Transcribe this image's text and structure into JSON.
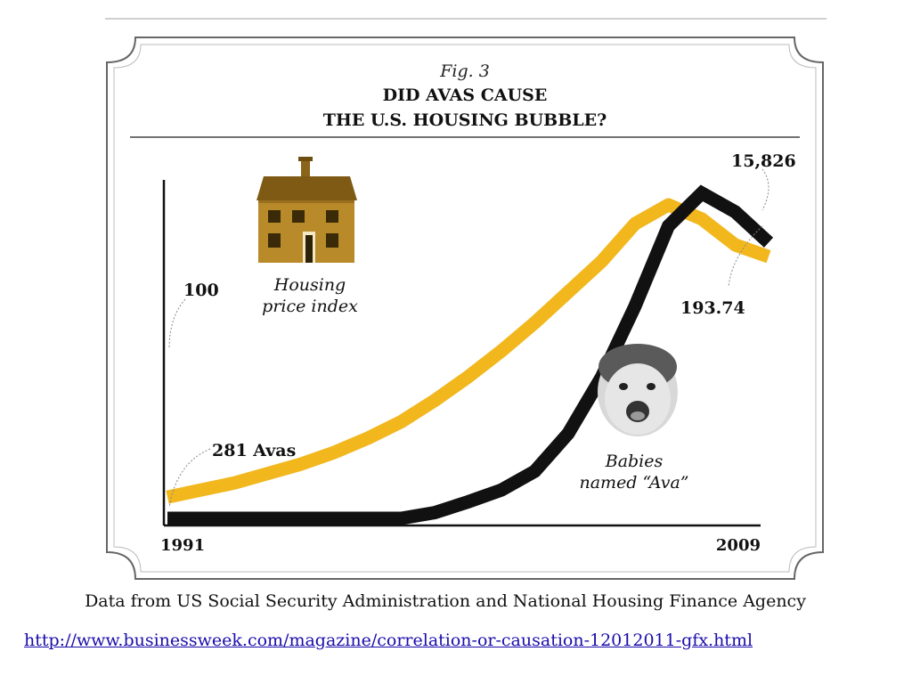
{
  "figure": {
    "fig_label": "Fig. 3",
    "title_line1": "DID AVAS CAUSE",
    "title_line2": "THE U.S. HOUSING BUBBLE?",
    "house_label_line1": "Housing",
    "house_label_line2": "price index",
    "baby_label_line1": "Babies",
    "baby_label_line2": "named “Ava”",
    "colors": {
      "housing_line": "#f1b71d",
      "ava_line": "#111111",
      "frame": "#666666",
      "house_body": "#b88a2a",
      "house_roof": "#7e5a14"
    },
    "icons": [
      "house-icon",
      "baby-face-icon"
    ]
  },
  "chart_data": {
    "type": "line",
    "x_start_label": "1991",
    "x_end_label": "2009",
    "x": [
      1991,
      1992,
      1993,
      1994,
      1995,
      1996,
      1997,
      1998,
      1999,
      2000,
      2001,
      2002,
      2003,
      2004,
      2005,
      2006,
      2007,
      2008,
      2009
    ],
    "series": [
      {
        "key": "housing",
        "start_label": "100",
        "end_label": "193.74",
        "values": [
          0.45,
          0.6,
          0.75,
          0.95,
          1.15,
          1.4,
          1.7,
          2.05,
          2.5,
          3.0,
          3.55,
          4.15,
          4.8,
          5.45,
          6.25,
          6.65,
          6.35,
          5.8,
          5.55
        ]
      },
      {
        "key": "avas",
        "start_label": "281 Avas",
        "end_label": "15,826",
        "values": [
          0.0,
          0.0,
          0.0,
          0.0,
          0.0,
          0.0,
          0.0,
          0.0,
          0.12,
          0.35,
          0.6,
          1.0,
          1.8,
          3.0,
          4.5,
          6.2,
          6.9,
          6.5,
          5.85
        ]
      }
    ],
    "ylim": [
      0,
      7.5
    ]
  },
  "footer": {
    "source": "Data from US Social Security Administration and National Housing Finance Agency",
    "url": "http://www.businessweek.com/magazine/correlation-or-causation-12012011-gfx.html"
  }
}
